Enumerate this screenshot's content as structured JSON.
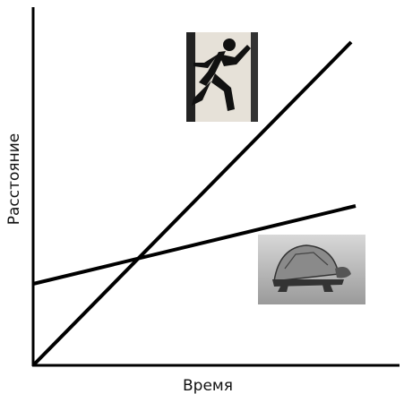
{
  "axes": {
    "x_label": "Время",
    "y_label": "Расстояние"
  }
}
